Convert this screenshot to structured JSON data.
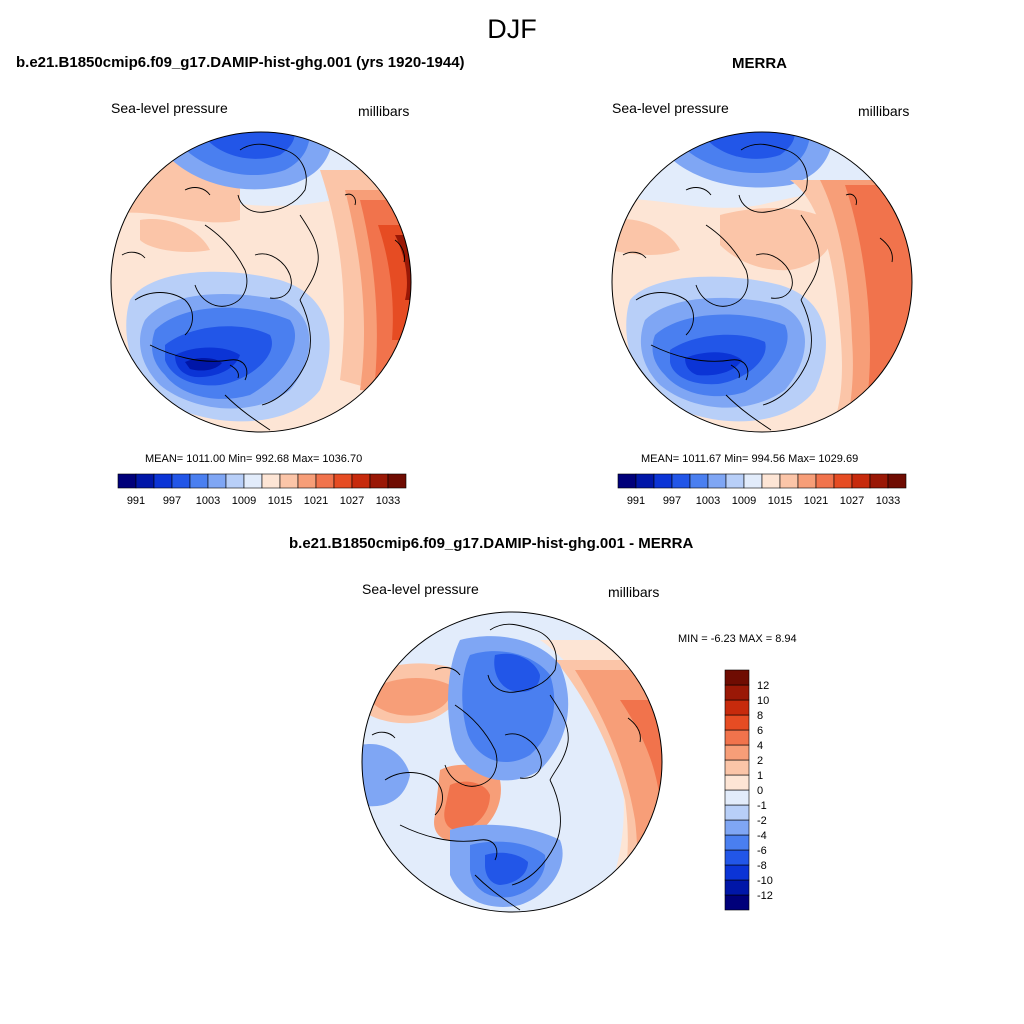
{
  "figure": {
    "title": "DJF"
  },
  "colors": {
    "sequential": [
      "#00007a",
      "#0016a8",
      "#0b34d6",
      "#2256e8",
      "#4a7ff0",
      "#7fa6f4",
      "#b8cff8",
      "#e2ecfb",
      "#fde5d5",
      "#fbc5a8",
      "#f79e78",
      "#f1734c",
      "#e64c23",
      "#c72a0c",
      "#9a1806",
      "#6f0c02"
    ],
    "diff": [
      "#00007a",
      "#0016a8",
      "#0b34d6",
      "#2256e8",
      "#4a7ff0",
      "#7fa6f4",
      "#b8cff8",
      "#e2ecfb",
      "#fde5d5",
      "#fbc5a8",
      "#f79e78",
      "#f1734c",
      "#e64c23",
      "#c72a0c",
      "#9a1806",
      "#6f0c02"
    ]
  },
  "panels": {
    "model": {
      "title": "b.e21.B1850cmip6.f09_g17.DAMIP-hist-ghg.001 (yrs 1920-1944)",
      "left_label": "Sea-level pressure",
      "right_label": "millibars",
      "stats": "MEAN= 1011.00  Min= 992.68  Max= 1036.70",
      "colorbar_ticks": [
        "991",
        "997",
        "1003",
        "1009",
        "1015",
        "1021",
        "1027",
        "1033"
      ]
    },
    "obs": {
      "title": "MERRA",
      "left_label": "Sea-level pressure",
      "right_label": "millibars",
      "stats": "MEAN= 1011.67  Min= 994.56  Max= 1029.69",
      "colorbar_ticks": [
        "991",
        "997",
        "1003",
        "1009",
        "1015",
        "1021",
        "1027",
        "1033"
      ]
    },
    "diff": {
      "title": "b.e21.B1850cmip6.f09_g17.DAMIP-hist-ghg.001 - MERRA",
      "left_label": "Sea-level pressure",
      "right_label": "millibars",
      "stats": "MIN =  -6.23 MAX =   8.94",
      "colorbar_ticks": [
        "12",
        "10",
        "8",
        "6",
        "4",
        "2",
        "1",
        "0",
        "-1",
        "-2",
        "-4",
        "-6",
        "-8",
        "-10",
        "-12"
      ]
    }
  }
}
